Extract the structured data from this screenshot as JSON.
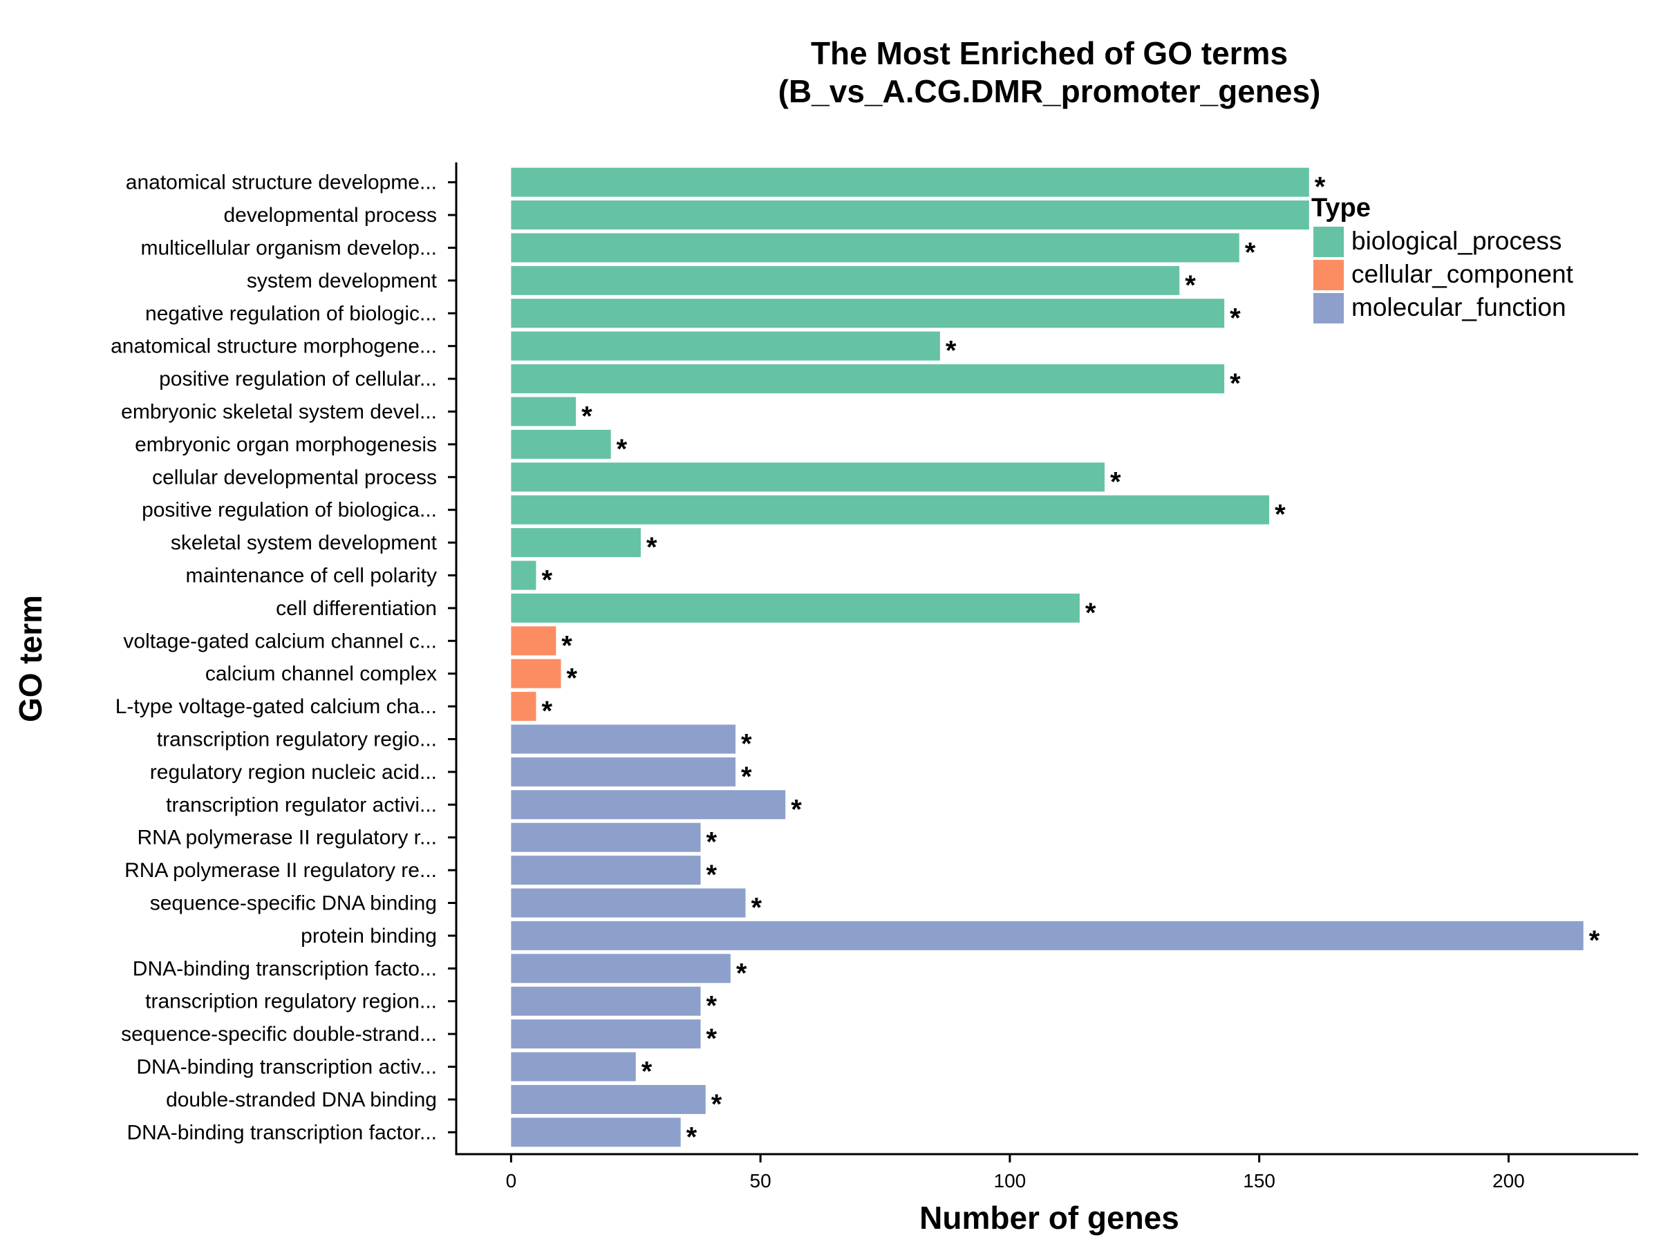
{
  "chart_data": {
    "type": "bar",
    "orientation": "horizontal",
    "title_lines": [
      "The Most Enriched of GO terms",
      "(B_vs_A.CG.DMR_promoter_genes)"
    ],
    "xlabel": "Number of genes",
    "ylabel": "GO term",
    "xlim": [
      -11,
      226
    ],
    "xticks": [
      0,
      50,
      100,
      150,
      200
    ],
    "xtick_labels": [
      "0",
      "50",
      "100",
      "150",
      "200"
    ],
    "grid": false,
    "legend": {
      "title": "Type",
      "position": "top-right",
      "entries": [
        {
          "label": "biological_process",
          "color": "#66c2a5"
        },
        {
          "label": "cellular_component",
          "color": "#fc8d62"
        },
        {
          "label": "molecular_function",
          "color": "#8da0cb"
        }
      ]
    },
    "significance_marker": "*",
    "categories": [
      {
        "term": "anatomical structure developme...",
        "value": 160,
        "type": "biological_process",
        "significant": true
      },
      {
        "term": "developmental process",
        "value": 160,
        "type": "biological_process",
        "significant": false
      },
      {
        "term": "multicellular organism develop...",
        "value": 146,
        "type": "biological_process",
        "significant": true
      },
      {
        "term": "system development",
        "value": 134,
        "type": "biological_process",
        "significant": true
      },
      {
        "term": "negative regulation of biologic...",
        "value": 143,
        "type": "biological_process",
        "significant": true
      },
      {
        "term": "anatomical structure morphogene...",
        "value": 86,
        "type": "biological_process",
        "significant": true
      },
      {
        "term": "positive regulation of cellular...",
        "value": 143,
        "type": "biological_process",
        "significant": true
      },
      {
        "term": "embryonic skeletal system devel...",
        "value": 13,
        "type": "biological_process",
        "significant": true
      },
      {
        "term": "embryonic organ morphogenesis",
        "value": 20,
        "type": "biological_process",
        "significant": true
      },
      {
        "term": "cellular developmental process",
        "value": 119,
        "type": "biological_process",
        "significant": true
      },
      {
        "term": "positive regulation of biologica...",
        "value": 152,
        "type": "biological_process",
        "significant": true
      },
      {
        "term": "skeletal system development",
        "value": 26,
        "type": "biological_process",
        "significant": true
      },
      {
        "term": "maintenance of cell polarity",
        "value": 5,
        "type": "biological_process",
        "significant": true
      },
      {
        "term": "cell differentiation",
        "value": 114,
        "type": "biological_process",
        "significant": true
      },
      {
        "term": "voltage-gated calcium channel c...",
        "value": 9,
        "type": "cellular_component",
        "significant": true
      },
      {
        "term": "calcium channel complex",
        "value": 10,
        "type": "cellular_component",
        "significant": true
      },
      {
        "term": "L-type voltage-gated calcium cha...",
        "value": 5,
        "type": "cellular_component",
        "significant": true
      },
      {
        "term": "transcription regulatory regio...",
        "value": 45,
        "type": "molecular_function",
        "significant": true
      },
      {
        "term": "regulatory region nucleic acid...",
        "value": 45,
        "type": "molecular_function",
        "significant": true
      },
      {
        "term": "transcription regulator activi...",
        "value": 55,
        "type": "molecular_function",
        "significant": true
      },
      {
        "term": "RNA polymerase II regulatory r...",
        "value": 38,
        "type": "molecular_function",
        "significant": true
      },
      {
        "term": "RNA polymerase II regulatory re...",
        "value": 38,
        "type": "molecular_function",
        "significant": true
      },
      {
        "term": "sequence-specific DNA binding",
        "value": 47,
        "type": "molecular_function",
        "significant": true
      },
      {
        "term": "protein binding",
        "value": 215,
        "type": "molecular_function",
        "significant": true
      },
      {
        "term": "DNA-binding transcription facto...",
        "value": 44,
        "type": "molecular_function",
        "significant": true
      },
      {
        "term": "transcription regulatory region...",
        "value": 38,
        "type": "molecular_function",
        "significant": true
      },
      {
        "term": "sequence-specific double-strand...",
        "value": 38,
        "type": "molecular_function",
        "significant": true
      },
      {
        "term": "DNA-binding transcription activ...",
        "value": 25,
        "type": "molecular_function",
        "significant": true
      },
      {
        "term": "double-stranded DNA binding",
        "value": 39,
        "type": "molecular_function",
        "significant": true
      },
      {
        "term": "DNA-binding transcription factor...",
        "value": 34,
        "type": "molecular_function",
        "significant": true
      }
    ]
  }
}
